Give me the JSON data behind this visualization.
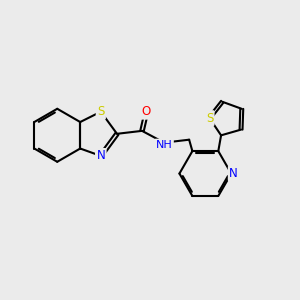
{
  "background_color": "#ebebeb",
  "bond_color": "#000000",
  "S_color": "#cccc00",
  "N_color": "#0000ff",
  "O_color": "#ff0000",
  "line_width": 1.5,
  "figsize": [
    3.0,
    3.0
  ],
  "dpi": 100,
  "xlim": [
    0,
    10
  ],
  "ylim": [
    0,
    10
  ]
}
